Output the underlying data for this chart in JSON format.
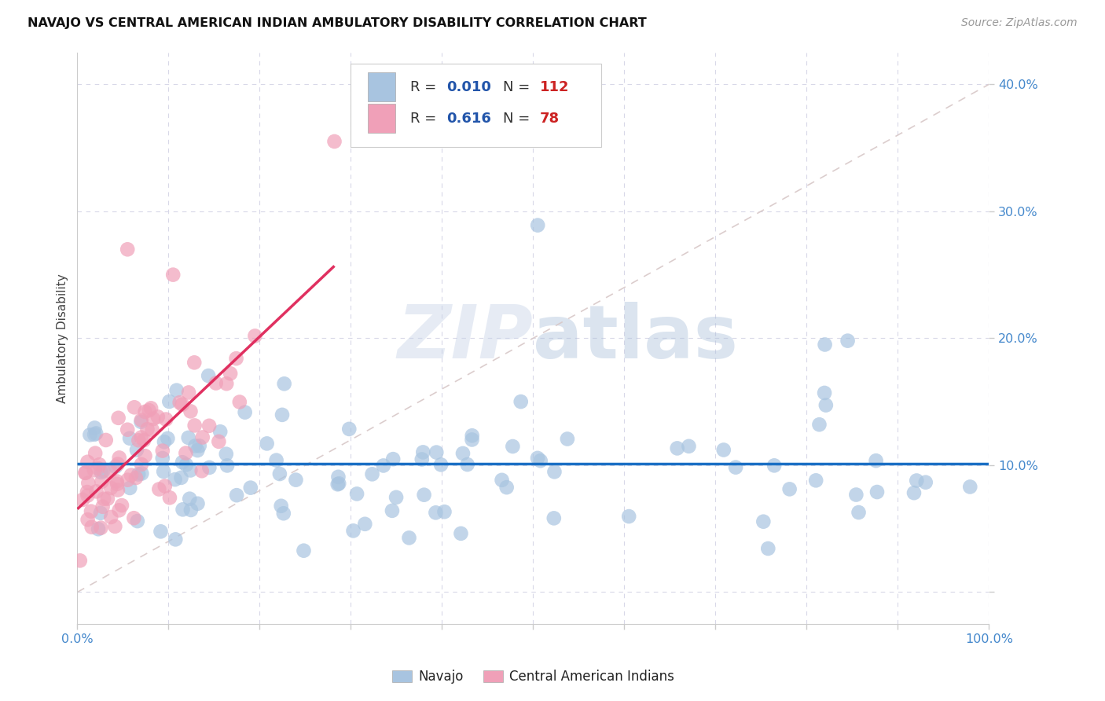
{
  "title": "NAVAJO VS CENTRAL AMERICAN INDIAN AMBULATORY DISABILITY CORRELATION CHART",
  "source": "Source: ZipAtlas.com",
  "ylabel": "Ambulatory Disability",
  "xlim": [
    0.0,
    1.0
  ],
  "ylim": [
    -0.025,
    0.425
  ],
  "navajo_R": 0.01,
  "navajo_N": 112,
  "ca_indian_R": 0.616,
  "ca_indian_N": 78,
  "navajo_color": "#a8c4e0",
  "ca_indian_color": "#f0a0b8",
  "navajo_trend_color": "#1a6fc4",
  "ca_indian_trend_color": "#e03060",
  "diagonal_color": "#d8c8c8",
  "grid_color": "#d8d8e8",
  "tick_label_color": "#4488cc",
  "legend_text_color": "#2255aa",
  "legend_N_color": "#cc2222",
  "watermark_zip_color": "#c8d4e8",
  "watermark_atlas_color": "#b0c4dc",
  "title_color": "#111111",
  "source_color": "#999999",
  "ylabel_color": "#444444",
  "bottom_legend_color": "#222222"
}
